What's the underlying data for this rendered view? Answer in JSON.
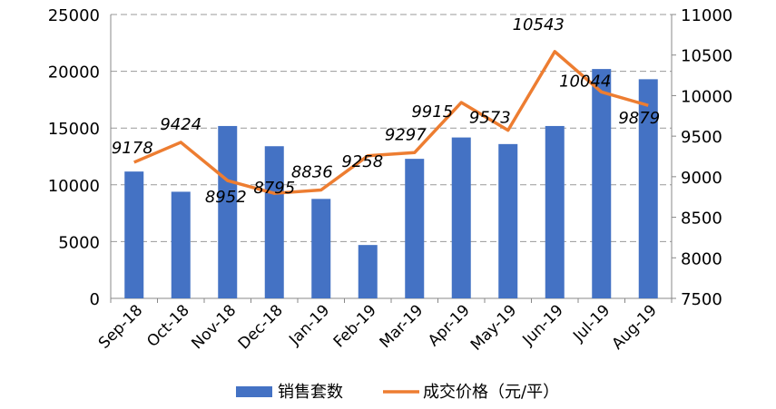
{
  "chart_data": {
    "type": "bar+line",
    "categories": [
      "Sep-18",
      "Oct-18",
      "Nov-18",
      "Dec-18",
      "Jan-19",
      "Feb-19",
      "Mar-19",
      "Apr-19",
      "May-19",
      "Jun-19",
      "Jul-19",
      "Aug-19"
    ],
    "series": [
      {
        "name": "销售套数",
        "type": "bar",
        "axis": "left",
        "color": "#4472C4",
        "values": [
          11170,
          9390,
          15180,
          13400,
          8760,
          4700,
          12290,
          14170,
          13590,
          15180,
          20200,
          19300
        ]
      },
      {
        "name": "成交价格（元/平）",
        "type": "line",
        "axis": "right",
        "color": "#ED7D31",
        "values": [
          9178,
          9424,
          8952,
          8795,
          8836,
          9258,
          9297,
          9915,
          9573,
          10543,
          10044,
          9879
        ],
        "labels": [
          "9178",
          "9424",
          "8952",
          "8795",
          "8836",
          "9258",
          "9297",
          "9915",
          "9573",
          "10543",
          "10044",
          "9879"
        ]
      }
    ],
    "y_left": {
      "range": [
        0,
        25000
      ],
      "ticks": [
        "0",
        "5000",
        "10000",
        "15000",
        "20000",
        "25000"
      ]
    },
    "y_right": {
      "range": [
        7500,
        11000
      ],
      "ticks": [
        "7500",
        "8000",
        "8500",
        "9000",
        "9500",
        "10000",
        "10500",
        "11000"
      ]
    },
    "grid": true,
    "legend": "bottom"
  }
}
